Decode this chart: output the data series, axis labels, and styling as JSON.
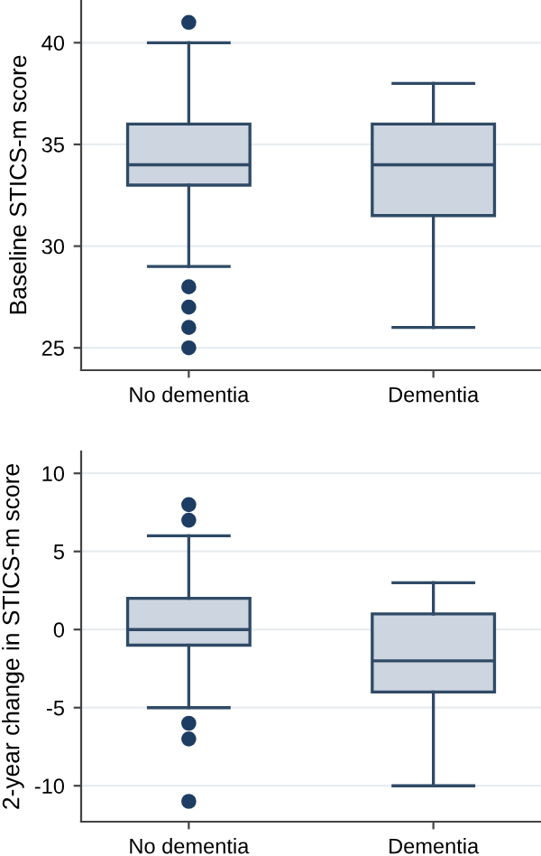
{
  "chart_data": [
    {
      "type": "box",
      "ylabel": "Baseline STICS-m score",
      "categories": [
        "No dementia",
        "Dementia"
      ],
      "color": "#cdd5e0",
      "ylim": [
        23.9,
        42.1
      ],
      "yticks": [
        25,
        30,
        35,
        40
      ],
      "grid": "y",
      "boxes": [
        {
          "low": 29,
          "q1": 33,
          "median": 34,
          "q3": 36,
          "high": 40,
          "outliers": [
            41,
            28,
            27,
            26,
            25
          ]
        },
        {
          "low": 26,
          "q1": 31.5,
          "median": 34,
          "q3": 36,
          "high": 38
        }
      ]
    },
    {
      "type": "box",
      "ylabel": "2-year change in STICS-m score",
      "categories": [
        "No dementia",
        "Dementia"
      ],
      "color": "#cdd5e0",
      "ylim": [
        -12.3,
        11.4
      ],
      "yticks": [
        -10,
        -5,
        0,
        5,
        10
      ],
      "grid": "y",
      "boxes": [
        {
          "low": -5,
          "q1": -1,
          "median": 0,
          "q3": 2,
          "high": 6,
          "outliers": [
            8,
            7,
            -6,
            -7,
            -11
          ]
        },
        {
          "low": -10,
          "q1": -4,
          "median": -2,
          "q3": 1,
          "high": 3
        }
      ]
    }
  ]
}
